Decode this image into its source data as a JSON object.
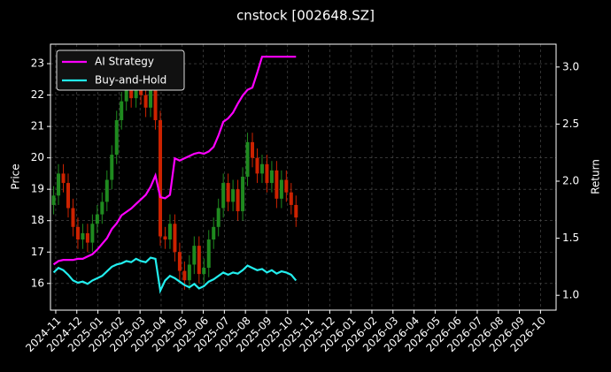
{
  "chart_data": {
    "type": "candlestick",
    "title": "cnstock [002648.SZ]",
    "ylabel": "Price",
    "y2label": "Return",
    "x": [
      -0.1,
      0.13,
      0.36,
      0.59,
      0.82,
      1.05,
      1.28,
      1.51,
      1.74,
      1.97,
      2.2,
      2.43,
      2.66,
      2.89,
      3.12,
      3.35,
      3.58,
      3.81,
      4.04,
      4.27,
      4.5,
      4.73,
      4.96,
      5.19,
      5.42,
      5.65,
      5.88,
      6.11,
      6.34,
      6.57,
      6.8,
      7.03,
      7.26,
      7.49,
      7.72,
      7.95,
      8.18,
      8.41,
      8.64,
      8.87,
      9.1,
      9.33,
      9.56,
      9.79,
      10.02,
      10.25,
      10.48,
      10.71,
      10.94,
      11.17,
      11.4
    ],
    "open": [
      18.5,
      18.8,
      19.5,
      19.2,
      18.4,
      17.8,
      17.4,
      17.6,
      17.3,
      17.9,
      18.2,
      18.6,
      19.3,
      20.1,
      21.2,
      21.8,
      22.3,
      21.9,
      22.4,
      22.0,
      21.6,
      22.2,
      21.2,
      17.5,
      17.4,
      17.9,
      17.0,
      16.4,
      16.1,
      16.6,
      17.2,
      16.3,
      16.5,
      17.4,
      17.8,
      18.4,
      19.2,
      18.6,
      19.0,
      18.3,
      19.4,
      20.5,
      20.0,
      19.5,
      19.8,
      19.2,
      19.6,
      18.7,
      19.3,
      18.9,
      18.5
    ],
    "high": [
      19.1,
      19.8,
      19.8,
      19.5,
      18.7,
      18.1,
      17.9,
      17.9,
      18.2,
      18.5,
      18.9,
      19.6,
      20.4,
      21.5,
      22.1,
      22.6,
      22.6,
      22.7,
      22.7,
      22.3,
      22.5,
      22.5,
      21.5,
      17.8,
      18.2,
      18.2,
      17.3,
      16.7,
      16.9,
      17.5,
      17.5,
      16.8,
      17.7,
      18.1,
      18.7,
      19.5,
      19.5,
      19.3,
      19.3,
      19.7,
      20.8,
      20.8,
      20.3,
      20.1,
      20.1,
      19.9,
      19.9,
      19.6,
      19.6,
      19.2,
      18.8
    ],
    "low": [
      18.2,
      18.5,
      18.9,
      18.1,
      17.5,
      17.1,
      17.1,
      17.0,
      17.0,
      17.6,
      17.9,
      18.3,
      19.0,
      19.8,
      20.9,
      21.5,
      21.6,
      21.6,
      21.7,
      21.3,
      21.3,
      20.9,
      17.2,
      17.1,
      17.1,
      16.7,
      16.1,
      15.8,
      15.8,
      16.3,
      16.0,
      16.0,
      16.2,
      17.1,
      17.5,
      18.1,
      18.3,
      18.3,
      18.0,
      18.0,
      19.1,
      19.7,
      19.2,
      19.2,
      18.9,
      18.9,
      18.4,
      18.4,
      18.6,
      18.2,
      17.8
    ],
    "close": [
      18.8,
      19.5,
      19.2,
      18.4,
      17.8,
      17.4,
      17.6,
      17.3,
      17.9,
      18.2,
      18.6,
      19.3,
      20.1,
      21.2,
      21.8,
      22.3,
      21.9,
      22.4,
      22.0,
      21.6,
      22.2,
      21.2,
      17.5,
      17.4,
      17.9,
      17.0,
      16.4,
      16.1,
      16.6,
      17.2,
      16.3,
      16.5,
      17.4,
      17.8,
      18.4,
      19.2,
      18.6,
      19.0,
      18.3,
      19.4,
      20.5,
      20.0,
      19.5,
      19.8,
      19.2,
      19.6,
      18.7,
      19.3,
      18.9,
      18.5,
      18.1
    ],
    "up_color": "#1f8a1f",
    "down_color": "#cc2200",
    "series": [
      {
        "name": "AI Strategy",
        "color": "#ff00ff",
        "axis": "y2",
        "values": [
          1.27,
          1.3,
          1.31,
          1.31,
          1.31,
          1.32,
          1.32,
          1.34,
          1.36,
          1.4,
          1.45,
          1.5,
          1.58,
          1.63,
          1.7,
          1.73,
          1.76,
          1.8,
          1.84,
          1.88,
          1.95,
          2.05,
          1.86,
          1.85,
          1.88,
          2.2,
          2.18,
          2.2,
          2.22,
          2.24,
          2.25,
          2.24,
          2.26,
          2.3,
          2.4,
          2.52,
          2.55,
          2.6,
          2.68,
          2.75,
          2.8,
          2.82,
          2.95,
          3.09,
          3.09,
          3.09,
          3.09,
          3.09,
          3.09,
          3.09,
          3.09
        ]
      },
      {
        "name": "Buy-and-Hold",
        "color": "#22eeee",
        "axis": "y2",
        "values": [
          1.2,
          1.24,
          1.22,
          1.18,
          1.13,
          1.11,
          1.12,
          1.1,
          1.13,
          1.15,
          1.17,
          1.21,
          1.25,
          1.27,
          1.28,
          1.3,
          1.29,
          1.32,
          1.3,
          1.29,
          1.33,
          1.32,
          1.04,
          1.13,
          1.17,
          1.15,
          1.12,
          1.09,
          1.07,
          1.1,
          1.06,
          1.08,
          1.12,
          1.14,
          1.17,
          1.2,
          1.18,
          1.2,
          1.19,
          1.22,
          1.26,
          1.24,
          1.22,
          1.23,
          1.2,
          1.22,
          1.19,
          1.21,
          1.2,
          1.18,
          1.13
        ]
      }
    ],
    "xlim": [
      -0.25,
      23.74
    ],
    "xticks": [
      {
        "value": 0,
        "label": "2024-11"
      },
      {
        "value": 1,
        "label": "2024-12"
      },
      {
        "value": 2,
        "label": "2025-01"
      },
      {
        "value": 3,
        "label": "2025-02"
      },
      {
        "value": 4,
        "label": "2025-03"
      },
      {
        "value": 5,
        "label": "2025-04"
      },
      {
        "value": 6,
        "label": "2025-05"
      },
      {
        "value": 7,
        "label": "2025-06"
      },
      {
        "value": 8,
        "label": "2025-07"
      },
      {
        "value": 9,
        "label": "2025-08"
      },
      {
        "value": 10,
        "label": "2025-09"
      },
      {
        "value": 11,
        "label": "2025-10"
      },
      {
        "value": 12,
        "label": "2025-11"
      },
      {
        "value": 13,
        "label": "2025-12"
      },
      {
        "value": 14,
        "label": "2026-01"
      },
      {
        "value": 15,
        "label": "2026-02"
      },
      {
        "value": 16,
        "label": "2026-03"
      },
      {
        "value": 17,
        "label": "2026-04"
      },
      {
        "value": 18,
        "label": "2026-05"
      },
      {
        "value": 19,
        "label": "2026-06"
      },
      {
        "value": 20,
        "label": "2026-07"
      },
      {
        "value": 21,
        "label": "2026-08"
      },
      {
        "value": 22,
        "label": "2026-09"
      },
      {
        "value": 23,
        "label": "2026-10"
      }
    ],
    "ylim": [
      15.15,
      23.62
    ],
    "yticks": [
      16,
      17,
      18,
      19,
      20,
      21,
      22,
      23
    ],
    "y2lim": [
      0.87,
      3.2
    ],
    "y2ticks": [
      {
        "value": 1,
        "label": "1.0"
      },
      {
        "value": 1.5,
        "label": "1.5"
      },
      {
        "value": 2,
        "label": "2.0"
      },
      {
        "value": 2.5,
        "label": "2.5"
      },
      {
        "value": 3,
        "label": "3.0"
      }
    ],
    "grid": true,
    "legend": "upper left"
  }
}
